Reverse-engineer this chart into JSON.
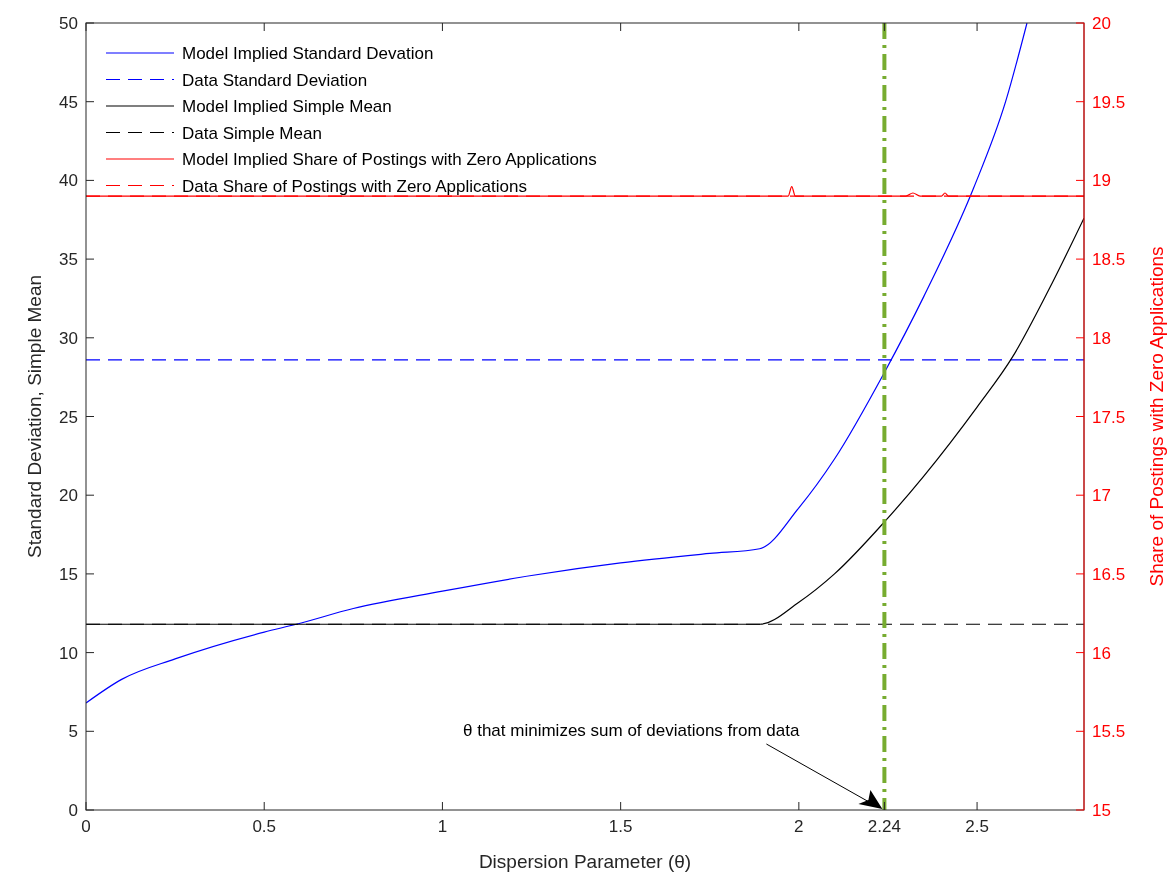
{
  "chart_data": {
    "type": "line",
    "xlabel": "Dispersion Parameter (θ)",
    "ylabel": "Standard Deviation, Simple Mean",
    "y2label": "Share of Postings with Zero Applications",
    "xlim": [
      0,
      2.8
    ],
    "xticks": [
      0,
      0.5,
      1,
      1.5,
      2,
      2.24,
      2.5
    ],
    "ylim": [
      0,
      50
    ],
    "yticks": [
      0,
      5,
      10,
      15,
      20,
      25,
      30,
      35,
      40,
      45,
      50
    ],
    "y2lim": [
      15,
      20
    ],
    "y2ticks": [
      15,
      15.5,
      16,
      16.5,
      17,
      17.5,
      18,
      18.5,
      19,
      19.5,
      20
    ],
    "legend": "top left",
    "grid": false,
    "series": [
      {
        "name": "Model Implied Standard Devation",
        "color": "#0000ff",
        "line_style": "solid",
        "x": [
          0,
          0.1,
          0.25,
          0.5,
          0.59,
          0.75,
          1,
          1.25,
          1.5,
          1.75,
          1.89,
          2,
          2.1,
          2.24,
          2.35,
          2.49,
          2.58,
          2.64
        ],
        "values": [
          6.8,
          8.3,
          9.6,
          11.3,
          11.8,
          12.8,
          13.9,
          14.9,
          15.7,
          16.3,
          16.6,
          19.2,
          22.3,
          27.8,
          32.6,
          39.5,
          45,
          50
        ]
      },
      {
        "name": "Data Standard Deviation",
        "color": "#0000ff",
        "line_style": "dashed",
        "x": [
          0,
          2.8
        ],
        "values": [
          28.6,
          28.6
        ]
      },
      {
        "name": "Model Implied Simple Mean",
        "color": "#000000",
        "line_style": "solid",
        "x": [
          0,
          1.89,
          2,
          2.1,
          2.24,
          2.35,
          2.5,
          2.6,
          2.7,
          2.8
        ],
        "values": [
          11.8,
          11.8,
          13.2,
          15,
          18.3,
          21.2,
          25.6,
          28.8,
          33,
          37.6
        ]
      },
      {
        "name": "Data Simple Mean",
        "color": "#000000",
        "line_style": "dashed",
        "x": [
          0,
          2.8
        ],
        "values": [
          11.8,
          11.8
        ]
      },
      {
        "name": "Model Implied Share of Postings with Zero Applications",
        "color": "#ff0000",
        "line_style": "solid",
        "axis": "y2",
        "x": [
          0,
          1.97,
          1.98,
          1.99,
          2.3,
          2.32,
          2.34,
          2.4,
          2.41,
          2.42,
          2.8
        ],
        "values": [
          18.9,
          18.9,
          18.96,
          18.9,
          18.9,
          18.92,
          18.9,
          18.9,
          18.92,
          18.9,
          18.9
        ]
      },
      {
        "name": "Data Share of Postings with Zero Applications",
        "color": "#ff0000",
        "line_style": "dashed",
        "axis": "y2",
        "x": [
          0,
          2.8
        ],
        "values": [
          18.9,
          18.9
        ]
      }
    ],
    "ref_lines": [
      {
        "axis": "x",
        "value": 2.24,
        "color": "#77ac30",
        "line_style": "dashed"
      }
    ],
    "annotations": [
      "θ that minimizes sum of deviations from data"
    ]
  }
}
